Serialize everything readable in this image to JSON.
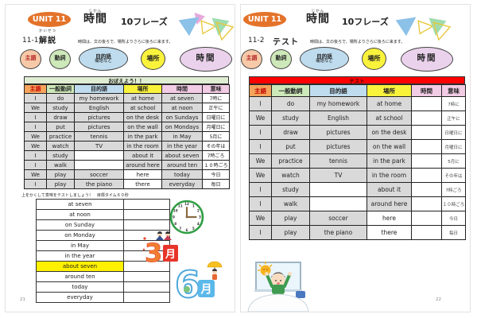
{
  "colors": {
    "unit_badge_bg": "#E4732A",
    "subject_bg": "#F6C9A8",
    "subject_header_bg": "#F5A45C",
    "subject_text": "#B02020",
    "verb_bg": "#CDE8B9",
    "object_bg": "#BFDCEE",
    "place_bg": "#FAF33C",
    "time_bg": "#EBD2EC",
    "time_header_bg": "#F2CBE5",
    "cell_gray": "#D9D9D9",
    "remember_banner_bg": "#DFEDD3",
    "test_banner_bg": "#FE0000",
    "highlight_yellow": "#FFF100"
  },
  "shared": {
    "unit_badge": "UNIT 11",
    "title": "時間",
    "title_furigana": "じかん",
    "phrase_count": "10フレーズ",
    "note": "時間は、文の後ろで、場所よりさらに後ろに来ます。",
    "pos_ovals": {
      "subject": "主語",
      "verb": "動詞",
      "object_line1": "目的語",
      "object_line2": "補語など",
      "place": "場所",
      "time": "時間"
    },
    "table_headers": [
      "主語",
      "一般動詞",
      "目的語",
      "場所",
      "時間",
      "意味"
    ],
    "table_rows": [
      [
        "I",
        "do",
        "my homework",
        "at home",
        "at seven",
        "7時に"
      ],
      [
        "We",
        "study",
        "English",
        "at school",
        "at noon",
        "正午に"
      ],
      [
        "I",
        "draw",
        "pictures",
        "on the desk",
        "on Sundays",
        "日曜日に"
      ],
      [
        "I",
        "put",
        "pictures",
        "on the wall",
        "on Mondays",
        "月曜日に"
      ],
      [
        "We",
        "practice",
        "tennis",
        "in the park",
        "in May",
        "5月に"
      ],
      [
        "We",
        "watch",
        "TV",
        "in the room",
        "in the year",
        "その年は"
      ],
      [
        "I",
        "study",
        "",
        "about it",
        "about seven",
        "7時ごろ"
      ],
      [
        "I",
        "walk",
        "",
        "around here",
        "around ten",
        "１０時ごろ"
      ],
      [
        "We",
        "play",
        "soccer",
        "here",
        "today",
        "今日"
      ],
      [
        "I",
        "play",
        "the piano",
        "there",
        "everyday",
        "毎日"
      ]
    ]
  },
  "left_page": {
    "section_number": "11-1",
    "section_title": "解説",
    "section_title_furigana": "かいせつ",
    "banner": "おぼえよう！！",
    "practice_caption": "上をかくして意味をテストしましょう！　目標タイム６０秒",
    "practice_items": [
      "at seven",
      "at noon",
      "on Sunday",
      "on Monday",
      "in May",
      "in the year",
      "about seven",
      "around ten",
      "today",
      "everyday"
    ],
    "practice_highlighted_item": "about seven",
    "page_number": "21",
    "decorations": {
      "clock_time": "3:00",
      "clock_numerals": [
        "12",
        "1",
        "2",
        "3",
        "4",
        "5",
        "6",
        "7",
        "8",
        "9",
        "10",
        "11"
      ],
      "march": {
        "num": "3",
        "suffix": "月"
      },
      "june": {
        "num": "6",
        "suffix": "月"
      }
    }
  },
  "right_page": {
    "section_number": "11-2",
    "section_title": "テスト",
    "banner": "テスト",
    "page_number": "22"
  }
}
